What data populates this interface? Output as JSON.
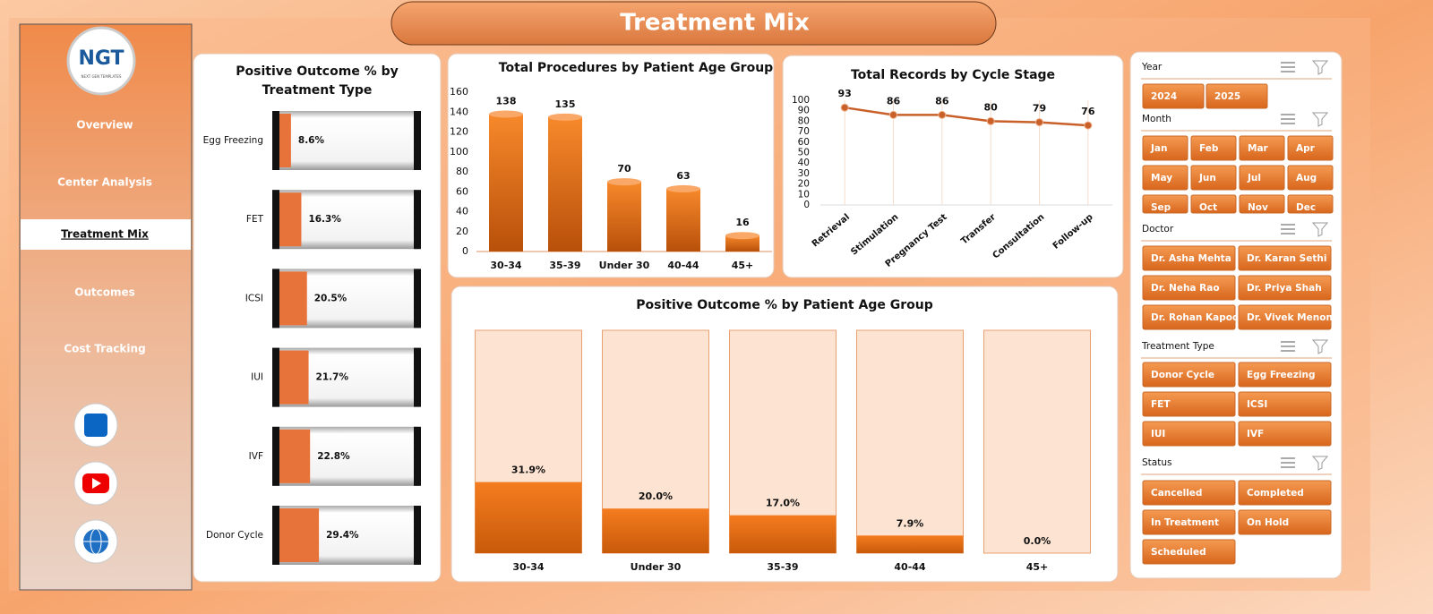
{
  "header": {
    "title": "Treatment Mix"
  },
  "logo": {
    "text": "NGT",
    "subtitle": "NEXT GEN TEMPLATES"
  },
  "nav": {
    "items": [
      "Overview",
      "Center Analysis",
      "Treatment Mix",
      "Outcomes",
      "Cost Tracking"
    ],
    "active": 2
  },
  "chart_data": [
    {
      "type": "hbar",
      "title": "Positive Outcome % by Treatment Type",
      "categories": [
        "Egg Freezing",
        "FET",
        "ICSI",
        "IUI",
        "IVF",
        "Donor Cycle"
      ],
      "values": [
        8.6,
        16.3,
        20.5,
        21.7,
        22.8,
        29.4
      ],
      "value_labels": [
        "8.6%",
        "16.3%",
        "20.5%",
        "21.7%",
        "22.8%",
        "29.4%"
      ],
      "xlim": [
        0,
        100
      ],
      "color": "#e8733a"
    },
    {
      "type": "cylinder",
      "title": "Total Procedures  by Patient Age Group",
      "categories": [
        "30-34",
        "35-39",
        "Under 30",
        "40-44",
        "45+"
      ],
      "values": [
        138,
        135,
        70,
        63,
        16
      ],
      "ylim": [
        0,
        160
      ],
      "yticks": [
        0,
        20,
        40,
        60,
        80,
        100,
        120,
        140,
        160
      ],
      "color": "#f7892b"
    },
    {
      "type": "line",
      "title": "Total Records by Cycle Stage",
      "categories": [
        "Retrieval",
        "Stimulation",
        "Pregnancy Test",
        "Transfer",
        "Consultation",
        "Follow-up"
      ],
      "values": [
        93,
        86,
        86,
        80,
        79,
        76
      ],
      "ylim": [
        0,
        100
      ],
      "yticks": [
        0,
        10,
        20,
        30,
        40,
        50,
        60,
        70,
        80,
        90,
        100
      ],
      "color": "#c9602a"
    },
    {
      "type": "progress-column",
      "title": "Positive Outcome % by Patient Age Group",
      "categories": [
        "30-34",
        "Under 30",
        "35-39",
        "40-44",
        "45+"
      ],
      "values": [
        31.9,
        20.0,
        17.0,
        7.9,
        0.0
      ],
      "value_labels": [
        "31.9%",
        "20.0%",
        "17.0%",
        "7.9%",
        "0.0%"
      ],
      "ylim": [
        0,
        100
      ],
      "color": "#f57c1f"
    }
  ],
  "slicers": [
    {
      "title": "Year",
      "items": [
        "2024",
        "2025"
      ]
    },
    {
      "title": "Month",
      "items": [
        "Jan",
        "Feb",
        "Mar",
        "Apr",
        "May",
        "Jun",
        "Jul",
        "Aug",
        "Sep",
        "Oct",
        "Nov",
        "Dec"
      ]
    },
    {
      "title": "Doctor",
      "items": [
        "Dr. Asha Mehta",
        "Dr. Karan Sethi",
        "Dr. Neha Rao",
        "Dr. Priya Shah",
        "Dr. Rohan Kapoor",
        "Dr. Vivek Menon"
      ]
    },
    {
      "title": "Treatment Type",
      "items": [
        "Donor Cycle",
        "Egg Freezing",
        "FET",
        "ICSI",
        "IUI",
        "IVF"
      ]
    },
    {
      "title": "Status",
      "items": [
        "Cancelled",
        "Completed",
        "In Treatment",
        "On Hold",
        "Scheduled"
      ]
    }
  ]
}
